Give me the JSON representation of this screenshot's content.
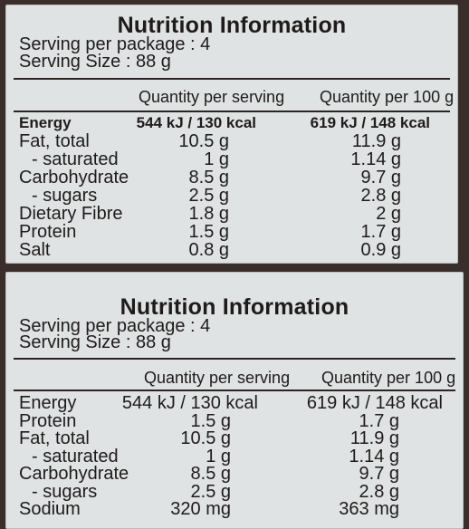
{
  "panels": [
    {
      "title": "Nutrition Information",
      "serving_per_package": "Serving per package : 4",
      "serving_size": "Serving Size : 88 g",
      "columns": [
        "Quantity per serving",
        "Quantity per 100 g"
      ],
      "rows": [
        {
          "label": "Energy",
          "per_serving": "544 kJ / 130 kcal",
          "per_100g": "619 kJ / 148 kcal"
        },
        {
          "label": "Fat, total",
          "per_serving": "10.5 g",
          "per_100g": "11.9 g"
        },
        {
          "label": "- saturated",
          "per_serving": "1 g",
          "per_100g": "1.14 g"
        },
        {
          "label": "Carbohydrate",
          "per_serving": "8.5 g",
          "per_100g": "9.7 g"
        },
        {
          "label": "- sugars",
          "per_serving": "2.5 g",
          "per_100g": "2.8 g"
        },
        {
          "label": "Dietary Fibre",
          "per_serving": "1.8 g",
          "per_100g": "2 g"
        },
        {
          "label": "Protein",
          "per_serving": "1.5 g",
          "per_100g": "1.7 g"
        },
        {
          "label": "Salt",
          "per_serving": "0.8 g",
          "per_100g": "0.9 g"
        }
      ]
    },
    {
      "title": "Nutrition Information",
      "serving_per_package": "Serving per package : 4",
      "serving_size": "Serving Size : 88 g",
      "columns": [
        "Quantity per serving",
        "Quantity per 100 g"
      ],
      "rows": [
        {
          "label": "Energy",
          "per_serving": "544 kJ / 130 kcal",
          "per_100g": "619 kJ / 148 kcal"
        },
        {
          "label": "Protein",
          "per_serving": "1.5 g",
          "per_100g": "1.7 g"
        },
        {
          "label": "Fat, total",
          "per_serving": "10.5 g",
          "per_100g": "11.9 g"
        },
        {
          "label": "- saturated",
          "per_serving": "1 g",
          "per_100g": "1.14 g"
        },
        {
          "label": "Carbohydrate",
          "per_serving": "8.5 g",
          "per_100g": "9.7 g"
        },
        {
          "label": "- sugars",
          "per_serving": "2.5 g",
          "per_100g": "2.8 g"
        },
        {
          "label": "Sodium",
          "per_serving": "320 mg",
          "per_100g": "363 mg"
        }
      ]
    }
  ]
}
